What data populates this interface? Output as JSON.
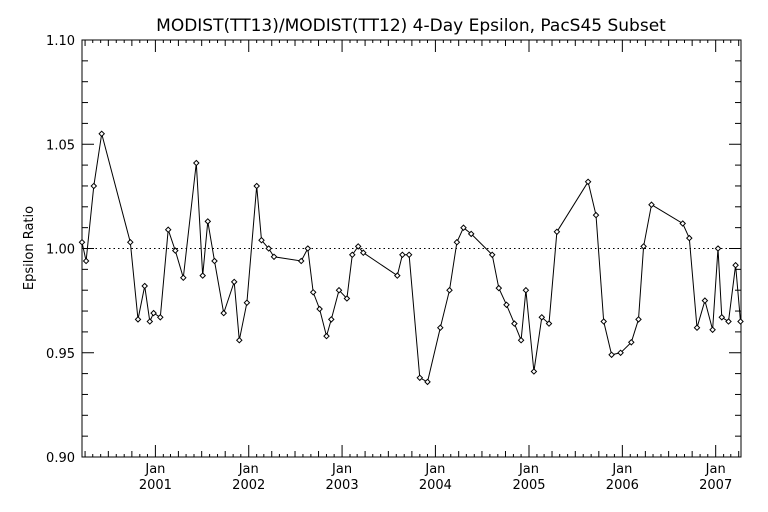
{
  "chart_data": {
    "type": "line",
    "title": "MODIST(TT13)/MODIST(TT12) 4-Day Epsilon, PacS45 Subset",
    "xlabel": "",
    "ylabel": "Epsilon Ratio",
    "ylim": [
      0.9,
      1.1
    ],
    "xlim": [
      "2000-03-20",
      "2007-04-10"
    ],
    "yticks": [
      "0.90",
      "0.95",
      "1.00",
      "1.05",
      "1.10"
    ],
    "xticks": [
      {
        "date": "2001-01-01",
        "month": "Jan",
        "year": "2001"
      },
      {
        "date": "2002-01-01",
        "month": "Jan",
        "year": "2002"
      },
      {
        "date": "2003-01-01",
        "month": "Jan",
        "year": "2003"
      },
      {
        "date": "2004-01-01",
        "month": "Jan",
        "year": "2004"
      },
      {
        "date": "2005-01-01",
        "month": "Jan",
        "year": "2005"
      },
      {
        "date": "2006-01-01",
        "month": "Jan",
        "year": "2006"
      },
      {
        "date": "2007-01-01",
        "month": "Jan",
        "year": "2007"
      }
    ],
    "reference_line": 1.0,
    "marker": "diamond",
    "series": [
      {
        "x": [
          "2000-03-20",
          "2000-04-05",
          "2000-05-05",
          "2000-06-05",
          "2000-09-25",
          "2000-10-25",
          "2000-11-20",
          "2000-12-10",
          "2000-12-25",
          "2001-01-20",
          "2001-02-20",
          "2001-03-20",
          "2001-04-20",
          "2001-06-10",
          "2001-07-05",
          "2001-07-25",
          "2001-08-20",
          "2001-09-25",
          "2001-11-05",
          "2001-11-25",
          "2001-12-25",
          "2002-02-01",
          "2002-02-20",
          "2002-03-20",
          "2002-04-10",
          "2002-07-25",
          "2002-08-20",
          "2002-09-10",
          "2002-10-05",
          "2002-11-01",
          "2002-11-20",
          "2002-12-20",
          "2003-01-20",
          "2003-02-10",
          "2003-03-05",
          "2003-03-25",
          "2003-08-05",
          "2003-08-25",
          "2003-09-20",
          "2003-11-01",
          "2003-12-01",
          "2004-01-20",
          "2004-02-25",
          "2004-03-25",
          "2004-04-20",
          "2004-05-20",
          "2004-08-10",
          "2004-09-05",
          "2004-10-05",
          "2004-11-05",
          "2004-12-01",
          "2004-12-20",
          "2005-01-20",
          "2005-02-20",
          "2005-03-20",
          "2005-04-20",
          "2005-08-20",
          "2005-09-20",
          "2005-10-20",
          "2005-11-20",
          "2005-12-25",
          "2006-02-05",
          "2006-03-05",
          "2006-03-25",
          "2006-04-25",
          "2006-08-25",
          "2006-09-20",
          "2006-10-20",
          "2006-11-20",
          "2006-12-20",
          "2007-01-10",
          "2007-01-25",
          "2007-02-20",
          "2007-03-20",
          "2007-04-08"
        ],
        "y": [
          1.003,
          0.994,
          1.03,
          1.055,
          1.003,
          0.966,
          0.982,
          0.965,
          0.969,
          0.967,
          1.009,
          0.999,
          0.986,
          1.041,
          0.987,
          1.013,
          0.994,
          0.969,
          0.984,
          0.956,
          0.974,
          1.03,
          1.004,
          1.0,
          0.996,
          0.994,
          1.0,
          0.979,
          0.971,
          0.958,
          0.966,
          0.98,
          0.976,
          0.997,
          1.001,
          0.998,
          0.987,
          0.997,
          0.997,
          0.938,
          0.936,
          0.962,
          0.98,
          1.003,
          1.01,
          1.007,
          0.997,
          0.981,
          0.973,
          0.964,
          0.956,
          0.98,
          0.941,
          0.967,
          0.964,
          1.008,
          1.032,
          1.016,
          0.965,
          0.949,
          0.95,
          0.955,
          0.966,
          1.001,
          1.021,
          1.012,
          1.005,
          0.962,
          0.975,
          0.961,
          1.0,
          0.967,
          0.965,
          0.992,
          0.965
        ]
      }
    ]
  }
}
